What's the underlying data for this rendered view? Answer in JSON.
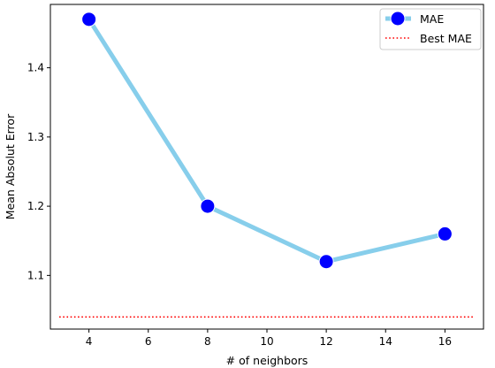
{
  "chart_data": {
    "type": "line",
    "title": "",
    "xlabel": "# of neighbors",
    "ylabel": "Mean Absolut Error",
    "xlim": [
      2.7,
      17.3
    ],
    "ylim": [
      1.0225,
      1.4915
    ],
    "xticks": [
      4,
      6,
      8,
      10,
      12,
      14,
      16
    ],
    "yticks": [
      1.1,
      1.2,
      1.3,
      1.4
    ],
    "grid": false,
    "legend": "top-right",
    "series": [
      {
        "name": "MAE",
        "x": [
          4,
          8,
          12,
          16
        ],
        "y": [
          1.47,
          1.2,
          1.12,
          1.16
        ],
        "line_color": "#87ceeb",
        "marker_color": "#0000ff",
        "marker_edge": "#ffffff"
      },
      {
        "name": "Best MAE",
        "x": [
          3,
          17
        ],
        "y": [
          1.04,
          1.04
        ],
        "line_color": "#ff0000",
        "style": "dotted"
      }
    ]
  }
}
